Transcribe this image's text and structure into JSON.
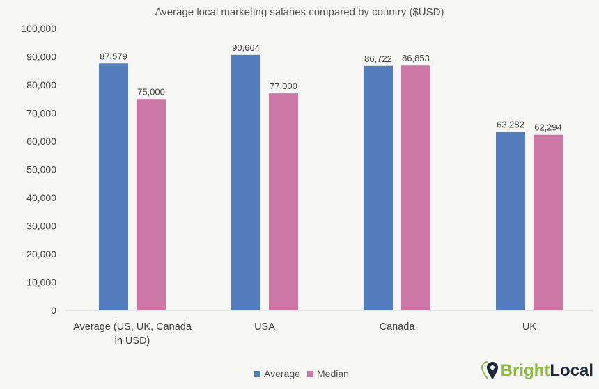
{
  "chart_data": {
    "type": "bar",
    "title": "Average local marketing salaries compared by country ($USD)",
    "categories": [
      "Average (US, UK, Canada\nin USD)",
      "USA",
      "Canada",
      "UK"
    ],
    "series": [
      {
        "name": "Average",
        "color": "#527ebd",
        "values": [
          87579,
          90664,
          86722,
          63282
        ],
        "labels": [
          "87,579",
          "90,664",
          "86,722",
          "63,282"
        ]
      },
      {
        "name": "Median",
        "color": "#cc77a5",
        "values": [
          75000,
          77000,
          86853,
          62294
        ],
        "labels": [
          "75,000",
          "77,000",
          "86,853",
          "62,294"
        ]
      }
    ],
    "ylim": [
      0,
      100000
    ],
    "yticks": [
      "0",
      "10,000",
      "20,000",
      "30,000",
      "40,000",
      "50,000",
      "60,000",
      "70,000",
      "80,000",
      "90,000",
      "100,000"
    ],
    "grid": false,
    "legend": "bottom"
  },
  "logo": {
    "text_bright": "Bright",
    "text_local": "Local",
    "bright_color": "#8dbb3f",
    "local_color": "#1e2a3a"
  }
}
